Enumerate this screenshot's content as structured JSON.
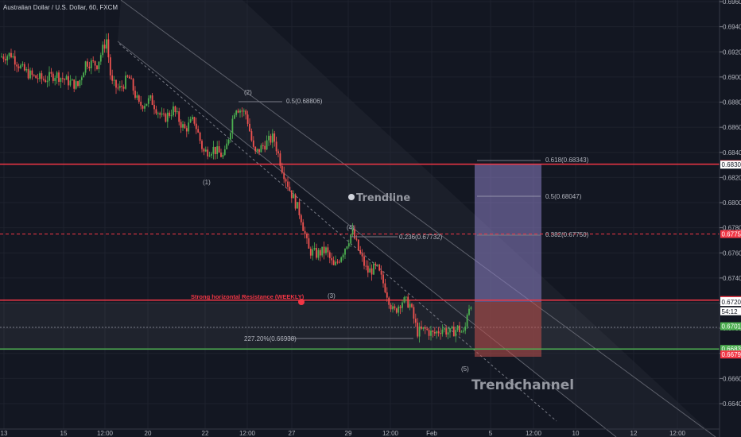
{
  "title": "Australian Dollar / U.S. Dollar, 60, FXCM",
  "chart_data": {
    "type": "candlestick",
    "symbol": "AUDUSD",
    "ylim": [
      0.6638,
      0.696
    ],
    "y_ticks": [
      0.664,
      0.666,
      0.668,
      0.67,
      0.672,
      0.674,
      0.676,
      0.678,
      0.68,
      0.682,
      0.684,
      0.686,
      0.688,
      0.69,
      0.692,
      0.694,
      0.696
    ],
    "y_tick_labels": [
      "0.66400",
      "0.66600",
      "0.66800",
      "0.67000",
      "0.67200",
      "0.67400",
      "0.67600",
      "0.67800",
      "0.68000",
      "0.68200",
      "0.68400",
      "0.68600",
      "0.68800",
      "0.69000",
      "0.69200",
      "0.69400",
      "0.69600"
    ],
    "x_tick_labels": [
      "13",
      "15",
      "12:00",
      "20",
      "22",
      "12:00",
      "27",
      "29",
      "12:00",
      "Feb",
      "5",
      "12:00",
      "10",
      "12",
      "12:00"
    ],
    "price_path": [
      [
        0,
        0.6916
      ],
      [
        14,
        0.6918
      ],
      [
        28,
        0.6906
      ],
      [
        42,
        0.69
      ],
      [
        56,
        0.6898
      ],
      [
        70,
        0.6902
      ],
      [
        84,
        0.6897
      ],
      [
        98,
        0.6893
      ],
      [
        108,
        0.6912
      ],
      [
        122,
        0.691
      ],
      [
        134,
        0.693
      ],
      [
        140,
        0.6895
      ],
      [
        150,
        0.689
      ],
      [
        162,
        0.69
      ],
      [
        175,
        0.6877
      ],
      [
        190,
        0.6882
      ],
      [
        205,
        0.6866
      ],
      [
        218,
        0.6874
      ],
      [
        232,
        0.6858
      ],
      [
        244,
        0.6866
      ],
      [
        256,
        0.684
      ],
      [
        268,
        0.6843
      ],
      [
        282,
        0.6836
      ],
      [
        296,
        0.6877
      ],
      [
        310,
        0.687
      ],
      [
        320,
        0.6838
      ],
      [
        332,
        0.6846
      ],
      [
        344,
        0.6852
      ],
      [
        355,
        0.6827
      ],
      [
        366,
        0.6808
      ],
      [
        378,
        0.679
      ],
      [
        388,
        0.6762
      ],
      [
        398,
        0.6759
      ],
      [
        410,
        0.6762
      ],
      [
        420,
        0.6748
      ],
      [
        432,
        0.6762
      ],
      [
        443,
        0.6777
      ],
      [
        452,
        0.676
      ],
      [
        462,
        0.6745
      ],
      [
        474,
        0.6748
      ],
      [
        484,
        0.6733
      ],
      [
        495,
        0.6712
      ],
      [
        505,
        0.6722
      ],
      [
        515,
        0.672
      ],
      [
        525,
        0.6697
      ],
      [
        535,
        0.6699
      ],
      [
        545,
        0.6695
      ],
      [
        556,
        0.67
      ],
      [
        566,
        0.6696
      ],
      [
        576,
        0.67
      ],
      [
        584,
        0.6695
      ],
      [
        588,
        0.6715
      ],
      [
        594,
        0.6723
      ]
    ],
    "horizontal_levels": [
      {
        "price": 0.68306,
        "label": "0.68306",
        "color": "#f23645",
        "style": "solid"
      },
      {
        "price": 0.6775,
        "label": "0.67750",
        "color": "#f23645",
        "style": "dashed"
      },
      {
        "price": 0.67224,
        "label": "0.67224",
        "color": "#f23645",
        "style": "solid"
      },
      {
        "price": 0.66835,
        "label": "0.66835",
        "color": "#4caf50",
        "style": "solid"
      }
    ],
    "price_tags": [
      {
        "price": 0.68306,
        "label": "0.68306",
        "bg": "#f23645",
        "fg": "#ffffff"
      },
      {
        "price": 0.68302,
        "label": "0.68302",
        "bg": "#ffffff",
        "fg": "#131722"
      },
      {
        "price": 0.6775,
        "label": "0.67750",
        "bg": "#f23645",
        "fg": "#ffffff"
      },
      {
        "price": 0.67224,
        "label": "0.67224",
        "bg": "#f23645",
        "fg": "#ffffff"
      },
      {
        "price": 0.67216,
        "label": "0.67216",
        "bg": "#ffffff",
        "fg": "#131722"
      },
      {
        "price": 0.67209,
        "label": "0.67209",
        "bg": "#ffffff",
        "fg": "#131722"
      },
      {
        "price": 0.67135,
        "label": "54:12",
        "bg": "#ffffff",
        "fg": "#131722"
      },
      {
        "price": 0.67016,
        "label": "0.67016",
        "bg": "#4caf50",
        "fg": "#ffffff"
      },
      {
        "price": 0.66835,
        "label": "0.66835",
        "bg": "#4caf50",
        "fg": "#ffffff"
      },
      {
        "price": 0.66791,
        "label": "0.66791",
        "bg": "#f23645",
        "fg": "#ffffff"
      }
    ],
    "fib_labels": [
      {
        "text": "0.5(0.68806)",
        "price": 0.68806
      },
      {
        "text": "0.236(0.67732)",
        "price": 0.67732
      },
      {
        "text": "227.20%(0.66938)",
        "price": 0.66938
      },
      {
        "text": "0.618(0.68343)",
        "price": 0.68343
      },
      {
        "text": "0.5(0.68047)",
        "price": 0.68047
      },
      {
        "text": "0.382(0.67750)",
        "price": 0.6775
      }
    ],
    "waves": [
      "(1)",
      "(2)",
      "(3)",
      "(4)",
      "(5)"
    ],
    "annotations": {
      "resistance": "Strong horizontal Resistance (WEEKLY)",
      "trendline": "Trendline",
      "trendchannel": "Trendchannel"
    },
    "position": {
      "entry": 0.67224,
      "target": 0.68306,
      "stop": 0.66791
    }
  },
  "colors": {
    "background": "#131722",
    "grid": "#1e222d",
    "up": "#4caf50",
    "down": "#ef5350",
    "resistance": "#f23645",
    "support": "#4caf50",
    "profit_zone": "#8c80c4",
    "loss_zone": "#c0504d"
  }
}
